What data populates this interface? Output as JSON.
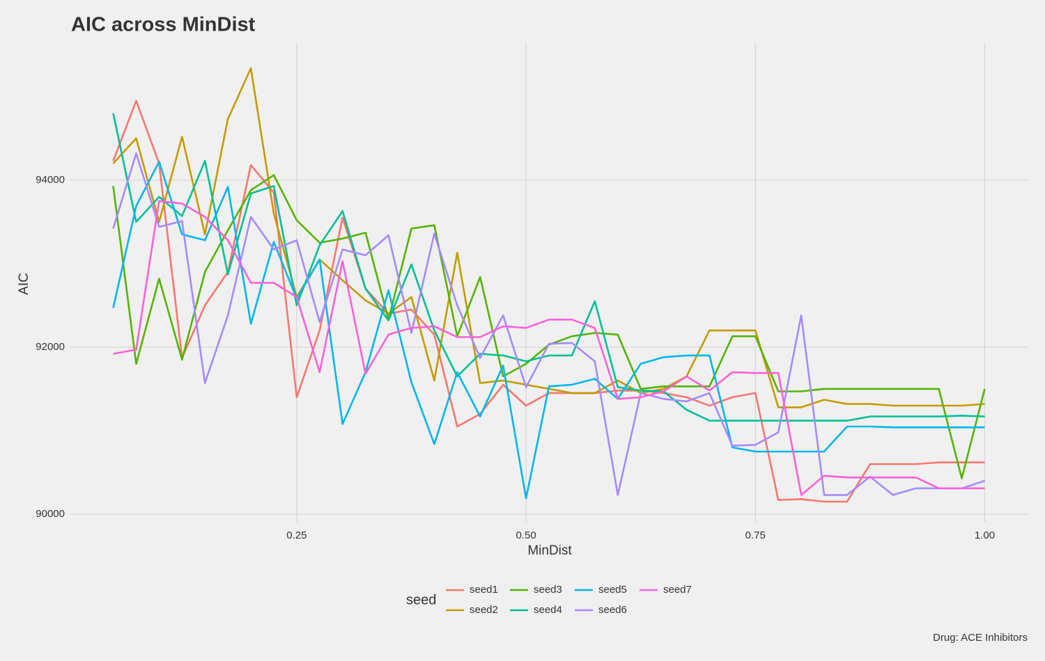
{
  "chart_data": {
    "type": "line",
    "title": "AIC across MinDist",
    "x_label": "MinDist",
    "y_label": "AIC",
    "legend_title": "seed",
    "caption": "Drug: ACE Inhibitors",
    "grid": true,
    "legend_position": "bottom",
    "x": [
      0.05,
      0.075,
      0.1,
      0.125,
      0.15,
      0.175,
      0.2,
      0.225,
      0.25,
      0.275,
      0.3,
      0.325,
      0.35,
      0.375,
      0.4,
      0.425,
      0.45,
      0.475,
      0.5,
      0.525,
      0.55,
      0.575,
      0.6,
      0.625,
      0.65,
      0.675,
      0.7,
      0.725,
      0.75,
      0.775,
      0.8,
      0.825,
      0.85,
      0.875,
      0.9,
      0.925,
      0.95,
      0.975,
      1.0
    ],
    "xlim": [
      0.0025,
      1.0475
    ],
    "xticks": [
      0.25,
      {
        "value": 0.5,
        "label": "0.50"
      },
      0.75,
      {
        "value": 1.0,
        "label": "1.00"
      }
    ],
    "ylim": [
      89900,
      95640
    ],
    "yticks": [
      90000,
      92000,
      94000
    ],
    "series": [
      {
        "name": "seed1",
        "color": "#F8766D",
        "values": [
          94230,
          94950,
          94200,
          91870,
          92500,
          92900,
          94180,
          93850,
          91400,
          92200,
          93550,
          92700,
          92400,
          92450,
          92150,
          91050,
          91200,
          91550,
          91300,
          91450,
          91450,
          91450,
          91480,
          91480,
          91450,
          91400,
          91300,
          91400,
          91450,
          90170,
          90180,
          90150,
          90150,
          90600,
          90600,
          90600,
          90620,
          90620,
          90620
        ]
      },
      {
        "name": "seed2",
        "color": "#C49A00",
        "values": [
          94200,
          94500,
          93500,
          94520,
          93350,
          94730,
          95340,
          93600,
          92600,
          93050,
          92800,
          92560,
          92400,
          92600,
          91600,
          93130,
          91570,
          91600,
          91550,
          91500,
          91450,
          91450,
          91600,
          91450,
          91500,
          91650,
          92200,
          92200,
          92200,
          91280,
          91280,
          91370,
          91320,
          91320,
          91300,
          91300,
          91300,
          91300,
          91320
        ]
      },
      {
        "name": "seed3",
        "color": "#53B400",
        "values": [
          93930,
          91800,
          92820,
          91850,
          92900,
          93400,
          93880,
          94060,
          93520,
          93250,
          93300,
          93370,
          92330,
          93420,
          93460,
          92130,
          92840,
          91650,
          91800,
          92030,
          92130,
          92170,
          92150,
          91500,
          91530,
          91530,
          91530,
          92130,
          92130,
          91470,
          91470,
          91500,
          91500,
          91500,
          91500,
          91500,
          91500,
          90430,
          91500
        ]
      },
      {
        "name": "seed4",
        "color": "#00C094",
        "values": [
          94800,
          93500,
          93800,
          93570,
          94230,
          92870,
          93840,
          93930,
          92500,
          93220,
          93630,
          92700,
          92320,
          92990,
          92200,
          91650,
          91920,
          91900,
          91830,
          91900,
          91900,
          92550,
          91520,
          91480,
          91470,
          91250,
          91120,
          91120,
          91120,
          91120,
          91120,
          91120,
          91120,
          91170,
          91170,
          91170,
          91170,
          91180,
          91170
        ]
      },
      {
        "name": "seed5",
        "color": "#00B6EB",
        "values": [
          92470,
          93690,
          94220,
          93350,
          93280,
          93920,
          92280,
          93260,
          92580,
          93050,
          91080,
          91700,
          92680,
          91580,
          90840,
          91700,
          91170,
          91780,
          90190,
          91530,
          91550,
          91620,
          91380,
          91800,
          91880,
          91900,
          91900,
          90800,
          90750,
          90750,
          90750,
          90750,
          91050,
          91050,
          91040,
          91040,
          91040,
          91040,
          91040
        ]
      },
      {
        "name": "seed6",
        "color": "#A58AFF",
        "values": [
          93420,
          94320,
          93440,
          93510,
          91570,
          92380,
          93560,
          93170,
          93280,
          92300,
          93170,
          93100,
          93340,
          92170,
          93360,
          92500,
          91870,
          92380,
          91520,
          92040,
          92050,
          91830,
          90230,
          91450,
          91380,
          91350,
          91450,
          90820,
          90830,
          90980,
          92380,
          90230,
          90230,
          90450,
          90230,
          90310,
          90310,
          90310,
          90400
        ]
      },
      {
        "name": "seed7",
        "color": "#FB61D7",
        "values": [
          91920,
          91970,
          93750,
          93720,
          93560,
          93280,
          92770,
          92770,
          92600,
          91700,
          93030,
          91680,
          92150,
          92230,
          92250,
          92120,
          92120,
          92250,
          92230,
          92330,
          92330,
          92230,
          91380,
          91400,
          91470,
          91650,
          91480,
          91700,
          91690,
          91690,
          90230,
          90460,
          90440,
          90440,
          90440,
          90440,
          90310,
          90310,
          90310
        ]
      }
    ]
  }
}
